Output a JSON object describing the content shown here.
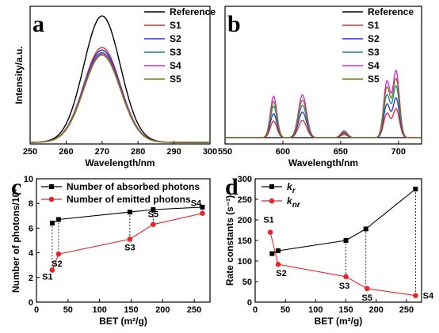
{
  "chart_data": [
    {
      "panel": "a",
      "type": "line",
      "xlabel": "Wavelength/nm",
      "ylabel": "Intensity/a.u.",
      "xlim": [
        250,
        300
      ],
      "xticks": [
        "250",
        "260",
        "270",
        "280",
        "290",
        "300"
      ],
      "y_ticks_shown": false,
      "legend_position": "top-right",
      "series": [
        {
          "name": "Reference",
          "color": "#000000",
          "peak": 1.0
        },
        {
          "name": "S1",
          "color": "#e8262a",
          "peak": 0.75
        },
        {
          "name": "S2",
          "color": "#2630c8",
          "peak": 0.73
        },
        {
          "name": "S3",
          "color": "#1a8a8a",
          "peak": 0.71
        },
        {
          "name": "S4",
          "color": "#e020e0",
          "peak": 0.7
        },
        {
          "name": "S5",
          "color": "#7a7a10",
          "peak": 0.69
        }
      ],
      "peak_wavelength": 270
    },
    {
      "panel": "b",
      "type": "line",
      "xlabel": "Wavelength/nm",
      "xlim": [
        550,
        720
      ],
      "xticks": [
        "550",
        "600",
        "650",
        "700"
      ],
      "y_ticks_shown": false,
      "legend_position": "top-right",
      "peaks_nm": [
        592,
        617,
        653,
        690,
        698
      ],
      "series": [
        {
          "name": "Reference",
          "color": "#000000",
          "peaks": [
            0,
            0,
            0,
            0,
            0
          ]
        },
        {
          "name": "S1",
          "color": "#e8262a",
          "peaks": [
            0.22,
            0.23,
            0.04,
            0.32,
            0.38
          ]
        },
        {
          "name": "S2",
          "color": "#2630c8",
          "peaks": [
            0.32,
            0.34,
            0.06,
            0.44,
            0.52
          ]
        },
        {
          "name": "S3",
          "color": "#1a8a8a",
          "peaks": [
            0.42,
            0.43,
            0.07,
            0.56,
            0.68
          ]
        },
        {
          "name": "S4",
          "color": "#e020e0",
          "peaks": [
            0.55,
            0.57,
            0.09,
            0.74,
            0.88
          ]
        },
        {
          "name": "S5",
          "color": "#7a7a10",
          "peaks": [
            0.48,
            0.5,
            0.08,
            0.66,
            0.78
          ]
        }
      ]
    },
    {
      "panel": "c",
      "type": "line",
      "xlabel": "BET (m²/g)",
      "ylabel": "Number of photons/10⁷",
      "xlim": [
        0,
        275
      ],
      "ylim": [
        0,
        10
      ],
      "xticks": [
        "0",
        "50",
        "100",
        "150",
        "200",
        "250"
      ],
      "yticks": [
        "0",
        "2",
        "4",
        "6",
        "8",
        "10"
      ],
      "legend_position": "top-left",
      "points": [
        "S1",
        "S2",
        "S3",
        "S5",
        "S4"
      ],
      "x": [
        25,
        35,
        148,
        185,
        263
      ],
      "series": [
        {
          "name": "Number of absorbed photons",
          "color": "#000000",
          "marker": "square",
          "values": [
            6.4,
            6.7,
            7.3,
            7.5,
            7.7
          ]
        },
        {
          "name": "Number of emitted photons",
          "color": "#e8262a",
          "marker": "circle",
          "values": [
            2.6,
            3.9,
            5.1,
            6.3,
            7.2
          ]
        }
      ]
    },
    {
      "panel": "d",
      "type": "line",
      "xlabel": "BET (m²/g)",
      "ylabel": "Rate constants (s⁻¹)",
      "xlim": [
        0,
        275
      ],
      "ylim": [
        0,
        300
      ],
      "xticks": [
        "0",
        "50",
        "100",
        "150",
        "200",
        "250"
      ],
      "yticks": [
        "0",
        "50",
        "100",
        "150",
        "200",
        "250",
        "300"
      ],
      "legend_position": "top-left",
      "x_r": [
        28,
        38,
        150,
        183,
        265
      ],
      "x_nr": [
        25,
        38,
        150,
        185,
        265
      ],
      "points": [
        "S1",
        "S2",
        "S3",
        "S5",
        "S4"
      ],
      "series": [
        {
          "name": "k_r",
          "color": "#000000",
          "marker": "square",
          "values": [
            118,
            125,
            150,
            178,
            275
          ]
        },
        {
          "name": "k_nr",
          "color": "#e8262a",
          "marker": "circle",
          "values": [
            170,
            92,
            62,
            33,
            16
          ]
        }
      ]
    }
  ]
}
